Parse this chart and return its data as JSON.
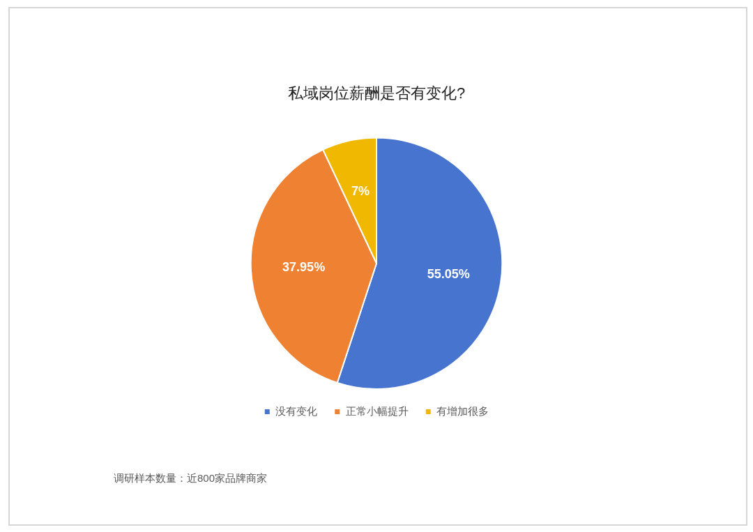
{
  "chart_data": {
    "type": "pie",
    "title": "私域岗位薪酬是否有变化?",
    "categories": [
      "没有变化",
      "正常小幅提升",
      "有增加很多"
    ],
    "values": [
      55.05,
      37.95,
      7
    ],
    "colors": [
      "#4674ce",
      "#ee8132",
      "#f1b800"
    ],
    "value_labels": [
      "55.05%",
      "37.95%",
      "7%"
    ],
    "legend": "bottom",
    "annotations": [
      "调研样本数量：近800家品牌商家"
    ]
  }
}
